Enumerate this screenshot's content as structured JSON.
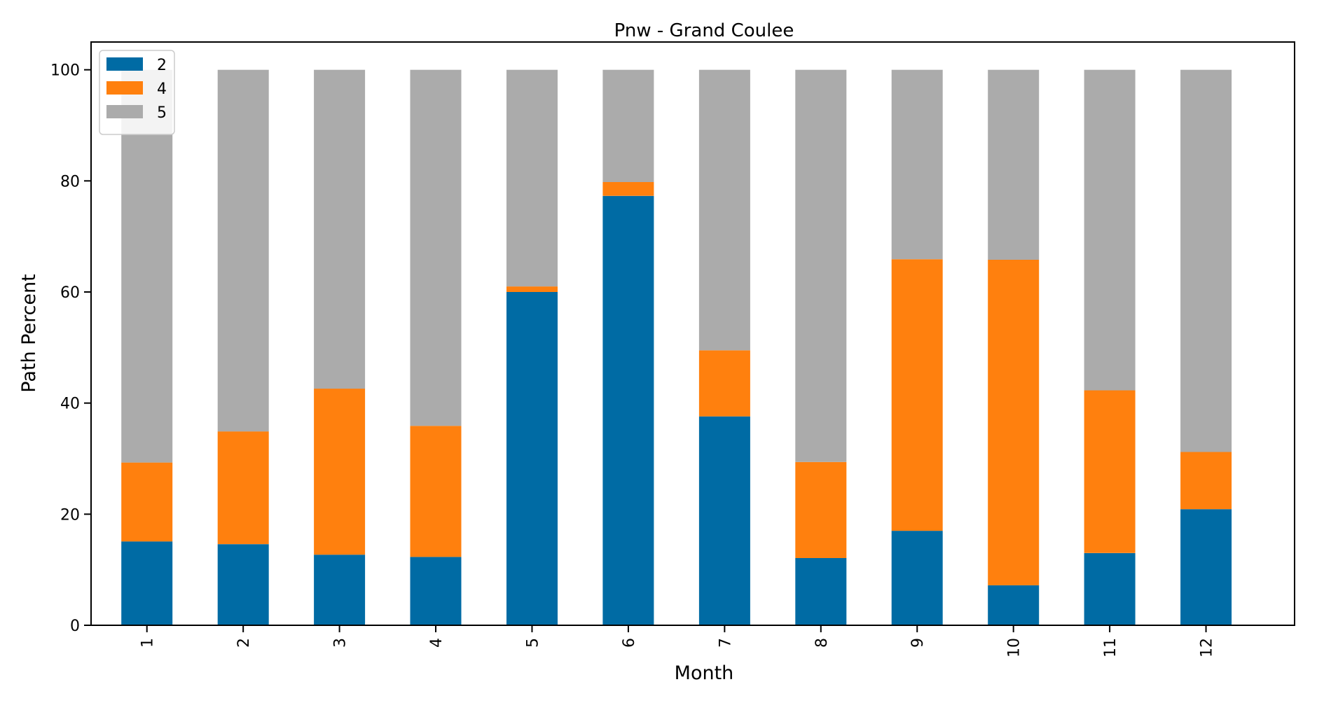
{
  "chart_data": {
    "type": "bar",
    "stacked": true,
    "title": "Pnw - Grand Coulee",
    "xlabel": "Month",
    "ylabel": "Path Percent",
    "categories": [
      "1",
      "2",
      "3",
      "4",
      "5",
      "6",
      "7",
      "8",
      "9",
      "10",
      "11",
      "12"
    ],
    "series": [
      {
        "name": "2",
        "color": "#006BA4",
        "values": [
          15.1,
          14.6,
          12.7,
          12.3,
          60.0,
          77.3,
          37.6,
          12.1,
          17.0,
          7.2,
          13.0,
          20.9
        ]
      },
      {
        "name": "4",
        "color": "#FF800E",
        "values": [
          14.2,
          20.3,
          29.9,
          23.6,
          1.0,
          2.5,
          11.9,
          17.3,
          48.9,
          58.6,
          29.3,
          10.3
        ]
      },
      {
        "name": "5",
        "color": "#ABABAB",
        "values": [
          70.7,
          65.1,
          57.4,
          64.1,
          39.0,
          20.2,
          50.5,
          70.6,
          34.1,
          34.2,
          57.7,
          68.8
        ]
      }
    ],
    "ylim": [
      0,
      105
    ],
    "yticks": [
      "0",
      "20",
      "40",
      "60",
      "80",
      "100"
    ],
    "grid": false,
    "legend_position": "top-left"
  }
}
